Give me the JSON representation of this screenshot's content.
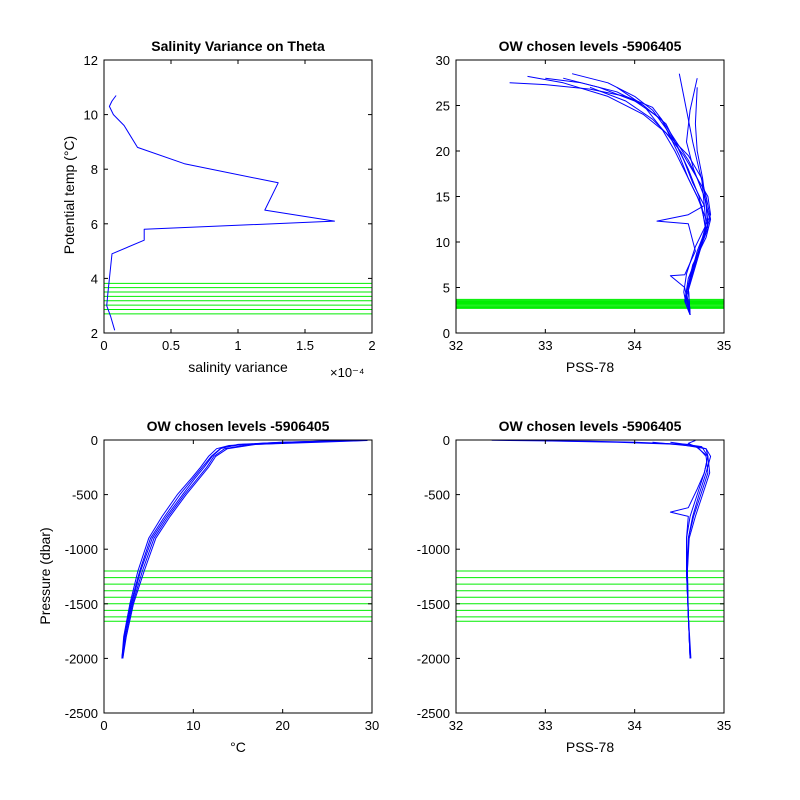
{
  "colors": {
    "profile": "#0000ff",
    "levels": "#00ee00",
    "axes": "#000000",
    "background": "#ffffff"
  },
  "chart_data": [
    {
      "type": "line",
      "title": "Salinity Variance on Theta",
      "xlabel": "salinity variance",
      "ylabel": "Potential temp (°C)",
      "x_exponent_label": "×10⁻⁴",
      "xlim": [
        0,
        0.0002
      ],
      "ylim": [
        2,
        12
      ],
      "xticks": [
        0,
        5e-05,
        0.0001,
        0.00015,
        0.0002
      ],
      "xtick_labels": [
        "0",
        "0.5",
        "1",
        "1.5",
        "2"
      ],
      "yticks": [
        2,
        4,
        6,
        8,
        10,
        12
      ],
      "ytick_labels": [
        "2",
        "4",
        "6",
        "8",
        "10",
        "12"
      ],
      "series": [
        {
          "x": [
            8e-06,
            5e-06,
            2e-06,
            3e-06,
            6e-06,
            3e-05,
            3e-05,
            0.000172,
            0.00012,
            0.00013,
            6e-05,
            2.5e-05,
            1.5e-05,
            7e-06,
            4e-06,
            6e-06,
            9e-06
          ],
          "y": [
            2.1,
            2.6,
            3.0,
            3.5,
            4.9,
            5.4,
            5.8,
            6.1,
            6.5,
            7.5,
            8.2,
            8.8,
            9.6,
            10.0,
            10.3,
            10.5,
            10.7
          ]
        }
      ],
      "hlines": [
        2.7,
        2.86,
        3.02,
        3.18,
        3.34,
        3.5,
        3.66,
        3.82
      ]
    },
    {
      "type": "line",
      "title": "OW chosen levels -5906405",
      "xlabel": "PSS-78",
      "ylabel": "",
      "xlim": [
        32,
        35
      ],
      "ylim": [
        0,
        30
      ],
      "xticks": [
        32,
        33,
        34,
        35
      ],
      "xtick_labels": [
        "32",
        "33",
        "34",
        "35"
      ],
      "yticks": [
        0,
        5,
        10,
        15,
        20,
        25,
        30
      ],
      "ytick_labels": [
        "0",
        "5",
        "10",
        "15",
        "20",
        "25",
        "30"
      ],
      "series": [
        {
          "x": [
            34.62,
            34.58,
            34.55,
            34.58,
            34.68,
            34.78,
            34.85,
            34.82,
            34.7,
            34.6,
            34.5,
            34.4,
            34.3,
            34.2,
            33.9,
            33.5,
            33.0,
            32.6
          ],
          "y": [
            2.0,
            3.0,
            4.5,
            6.5,
            9.5,
            11.5,
            13.0,
            15.0,
            17.0,
            19.0,
            20.5,
            22.0,
            23.5,
            24.8,
            26.0,
            26.8,
            27.3,
            27.5
          ]
        },
        {
          "x": [
            34.62,
            34.56,
            34.6,
            34.72,
            34.8,
            34.78,
            34.65,
            34.55,
            34.45,
            34.35,
            34.1,
            33.8,
            33.4,
            33.0
          ],
          "y": [
            2.0,
            3.5,
            6.0,
            9.0,
            12.0,
            14.0,
            16.5,
            19.0,
            21.0,
            23.0,
            25.0,
            26.5,
            27.5,
            28.0
          ]
        },
        {
          "x": [
            34.62,
            34.6,
            34.68,
            34.8,
            34.75,
            34.6,
            34.5,
            34.4,
            34.3,
            34.0,
            33.6,
            33.2
          ],
          "y": [
            2.0,
            5.0,
            8.0,
            11.0,
            14.0,
            17.0,
            19.5,
            21.5,
            23.5,
            25.5,
            27.0,
            28.0
          ]
        },
        {
          "x": [
            34.62,
            34.58,
            34.7,
            34.82,
            34.7,
            34.55,
            34.45,
            34.3,
            34.1,
            33.8
          ],
          "y": [
            2.0,
            4.0,
            8.0,
            12.0,
            15.0,
            18.0,
            20.0,
            22.5,
            25.0,
            27.0
          ]
        },
        {
          "x": [
            34.62,
            34.57,
            34.65,
            34.8,
            34.85,
            34.8,
            34.72,
            34.65,
            34.6,
            34.55,
            34.5
          ],
          "y": [
            2.0,
            4.0,
            7.5,
            10.5,
            12.5,
            15.0,
            18.0,
            21.0,
            23.5,
            26.0,
            28.5
          ]
        },
        {
          "x": [
            34.62,
            34.6,
            34.7,
            34.82,
            34.8,
            34.76,
            34.7,
            34.68,
            34.7
          ],
          "y": [
            2.0,
            5.0,
            8.5,
            11.5,
            14.0,
            17.0,
            20.0,
            23.0,
            27.0
          ]
        },
        {
          "x": [
            34.62,
            34.56,
            34.4,
            34.56,
            34.68,
            34.6,
            34.25,
            34.6,
            34.78,
            34.75,
            34.6,
            34.4,
            34.2,
            33.9,
            33.5
          ],
          "y": [
            2.0,
            5.0,
            6.3,
            6.4,
            9.0,
            12.0,
            12.3,
            13.0,
            14.0,
            17.0,
            19.5,
            21.5,
            23.5,
            25.5,
            27.0
          ]
        },
        {
          "x": [
            34.62,
            34.58,
            34.7,
            34.82,
            34.8,
            34.7,
            34.55,
            34.35,
            34.1,
            33.7,
            33.2,
            32.8
          ],
          "y": [
            2.0,
            4.5,
            9.0,
            12.0,
            14.5,
            17.0,
            19.5,
            22.0,
            24.0,
            26.0,
            27.5,
            28.2
          ]
        },
        {
          "x": [
            34.62,
            34.6,
            34.72,
            34.84,
            34.78,
            34.66,
            34.58,
            34.62,
            34.7
          ],
          "y": [
            2.0,
            5.0,
            9.0,
            12.5,
            15.0,
            18.0,
            21.0,
            24.5,
            28.0
          ]
        },
        {
          "x": [
            34.62,
            34.57,
            34.68,
            34.8,
            34.72,
            34.6,
            34.48,
            34.35,
            34.2,
            34.0,
            33.7,
            33.3
          ],
          "y": [
            2.0,
            4.0,
            8.0,
            11.5,
            15.0,
            18.0,
            20.5,
            22.5,
            24.5,
            26.0,
            27.5,
            28.5
          ]
        }
      ],
      "hlines": [
        2.7,
        2.8,
        2.9,
        3.0,
        3.1,
        3.2,
        3.3,
        3.4,
        3.5,
        3.6,
        3.7
      ]
    },
    {
      "type": "line",
      "title": "OW chosen levels -5906405",
      "xlabel": "°C",
      "ylabel": "Pressure (dbar)",
      "xlim": [
        0,
        30
      ],
      "ylim": [
        -2500,
        0
      ],
      "xticks": [
        0,
        10,
        20,
        30
      ],
      "xtick_labels": [
        "0",
        "10",
        "20",
        "30"
      ],
      "yticks": [
        -2500,
        -2000,
        -1500,
        -1000,
        -500,
        0
      ],
      "ytick_labels": [
        "-2500",
        "-2000",
        "-1500",
        "-1000",
        "-500",
        "0"
      ],
      "series": [
        {
          "x": [
            2.0,
            2.3,
            3.0,
            4.0,
            5.2,
            6.8,
            8.5,
            10.0,
            11.0,
            12.0,
            13.0,
            15.0,
            20.0,
            25.0,
            28.5
          ],
          "y": [
            -2000,
            -1800,
            -1500,
            -1200,
            -900,
            -700,
            -500,
            -350,
            -250,
            -150,
            -80,
            -40,
            -20,
            -10,
            -5
          ]
        },
        {
          "x": [
            2.1,
            2.4,
            3.2,
            4.3,
            5.6,
            7.2,
            9.0,
            10.5,
            11.5,
            12.3,
            13.5,
            16.0,
            21.0,
            26.0,
            29.0
          ],
          "y": [
            -2000,
            -1800,
            -1500,
            -1200,
            -900,
            -700,
            -500,
            -350,
            -250,
            -150,
            -80,
            -45,
            -25,
            -12,
            -5
          ]
        },
        {
          "x": [
            2.0,
            2.2,
            2.9,
            3.8,
            5.0,
            6.5,
            8.2,
            9.8,
            10.8,
            11.7,
            12.6,
            14.0,
            18.0,
            23.0,
            27.0
          ],
          "y": [
            -2000,
            -1800,
            -1500,
            -1200,
            -900,
            -700,
            -500,
            -350,
            -250,
            -150,
            -80,
            -50,
            -30,
            -15,
            -5
          ]
        },
        {
          "x": [
            2.1,
            2.5,
            3.3,
            4.5,
            5.8,
            7.4,
            9.2,
            10.7,
            11.7,
            12.5,
            13.8,
            17.0,
            24.0,
            29.5
          ],
          "y": [
            -2000,
            -1800,
            -1500,
            -1200,
            -900,
            -700,
            -500,
            -350,
            -250,
            -150,
            -80,
            -40,
            -20,
            -5
          ]
        },
        {
          "x": [
            2.0,
            2.3,
            3.1,
            4.1,
            5.4,
            7.0,
            8.8,
            10.2,
            11.2,
            12.1,
            13.2,
            15.5,
            19.5,
            24.5,
            28.0
          ],
          "y": [
            -2000,
            -1800,
            -1500,
            -1200,
            -900,
            -700,
            -500,
            -350,
            -250,
            -150,
            -70,
            -40,
            -22,
            -10,
            -4
          ]
        }
      ],
      "hlines": [
        -1200,
        -1260,
        -1320,
        -1380,
        -1440,
        -1500,
        -1560,
        -1620,
        -1660
      ]
    },
    {
      "type": "line",
      "title": "OW chosen levels -5906405",
      "xlabel": "PSS-78",
      "ylabel": "",
      "xlim": [
        32,
        35
      ],
      "ylim": [
        -2500,
        0
      ],
      "xticks": [
        32,
        33,
        34,
        35
      ],
      "xtick_labels": [
        "32",
        "33",
        "34",
        "35"
      ],
      "yticks": [
        -2500,
        -2000,
        -1500,
        -1000,
        -500,
        0
      ],
      "ytick_labels": [
        "-2500",
        "-2000",
        "-1500",
        "-1000",
        "-500",
        "0"
      ],
      "series": [
        {
          "x": [
            34.62,
            34.6,
            34.58,
            34.58,
            34.62,
            34.7,
            34.78,
            34.82,
            34.8,
            34.6,
            34.0,
            33.5,
            33.0,
            32.6,
            32.4
          ],
          "y": [
            -2000,
            -1600,
            -1200,
            -900,
            -700,
            -500,
            -300,
            -150,
            -80,
            -40,
            -20,
            -12,
            -8,
            -5,
            -3
          ]
        },
        {
          "x": [
            34.63,
            34.6,
            34.59,
            34.6,
            34.65,
            34.72,
            34.8,
            34.85,
            34.8,
            34.5,
            33.8,
            33.0
          ],
          "y": [
            -2000,
            -1600,
            -1200,
            -900,
            -700,
            -500,
            -300,
            -150,
            -80,
            -40,
            -20,
            -8
          ]
        },
        {
          "x": [
            34.62,
            34.6,
            34.58,
            34.6,
            34.66,
            34.74,
            34.82,
            34.8,
            34.7,
            34.2
          ],
          "y": [
            -2000,
            -1600,
            -1200,
            -900,
            -700,
            -500,
            -300,
            -150,
            -60,
            -20
          ]
        },
        {
          "x": [
            34.62,
            34.6,
            34.58,
            34.58,
            34.6,
            34.4,
            34.6,
            34.7,
            34.78,
            34.82,
            34.75,
            34.4
          ],
          "y": [
            -2000,
            -1600,
            -1200,
            -900,
            -700,
            -660,
            -620,
            -450,
            -300,
            -150,
            -60,
            -20
          ]
        },
        {
          "x": [
            34.62,
            34.6,
            34.59,
            34.61,
            34.68,
            34.76,
            34.84,
            34.82,
            34.7,
            34.6,
            34.68
          ],
          "y": [
            -2000,
            -1600,
            -1200,
            -900,
            -700,
            -500,
            -300,
            -150,
            -70,
            -30,
            -5
          ]
        }
      ],
      "hlines": [
        -1200,
        -1260,
        -1320,
        -1380,
        -1440,
        -1500,
        -1560,
        -1620,
        -1660
      ]
    }
  ]
}
